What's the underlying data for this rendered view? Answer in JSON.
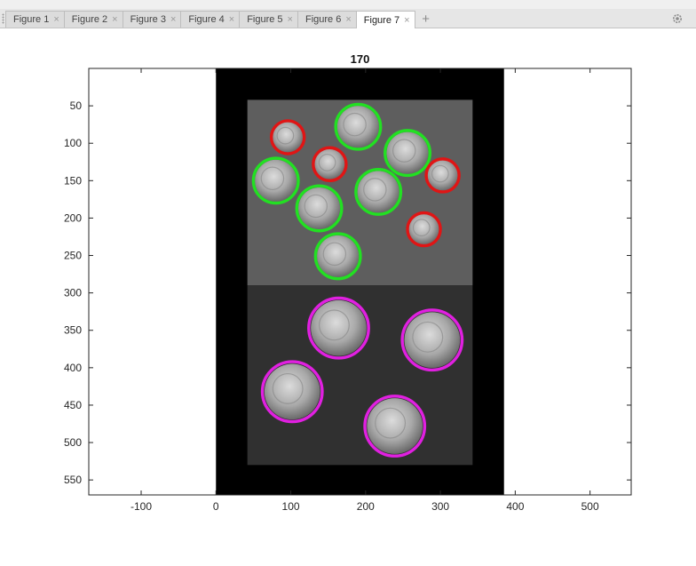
{
  "tabs": [
    {
      "label": "Figure 1",
      "active": false
    },
    {
      "label": "Figure 2",
      "active": false
    },
    {
      "label": "Figure 3",
      "active": false
    },
    {
      "label": "Figure 4",
      "active": false
    },
    {
      "label": "Figure 5",
      "active": false
    },
    {
      "label": "Figure 6",
      "active": false
    },
    {
      "label": "Figure 7",
      "active": true
    }
  ],
  "close_glyph": "×",
  "add_glyph": "+",
  "settings_icon": "gear-icon",
  "chart_data": {
    "type": "image",
    "title": "170",
    "xlim": [
      -170,
      555
    ],
    "ylim": [
      0,
      570
    ],
    "y_reversed": true,
    "image_extent": {
      "x": [
        0,
        385
      ],
      "y": [
        0,
        570
      ]
    },
    "inner_panels": [
      {
        "x": [
          42,
          343
        ],
        "y": [
          42,
          290
        ],
        "shade": "#5e5e5e"
      },
      {
        "x": [
          42,
          343
        ],
        "y": [
          290,
          530
        ],
        "shade": "#303030"
      }
    ],
    "x_ticks": [
      -100,
      0,
      100,
      200,
      300,
      400,
      500
    ],
    "y_ticks": [
      50,
      100,
      150,
      200,
      250,
      300,
      350,
      400,
      450,
      500,
      550
    ],
    "colors": {
      "green": "#22e022",
      "red": "#e01515",
      "magenta": "#e020e0",
      "coin": "#bcbcbc"
    },
    "circles": [
      {
        "x": 96,
        "y": 92,
        "r": 22,
        "color": "red"
      },
      {
        "x": 190,
        "y": 78,
        "r": 30,
        "color": "green"
      },
      {
        "x": 256,
        "y": 113,
        "r": 30,
        "color": "green"
      },
      {
        "x": 303,
        "y": 143,
        "r": 22,
        "color": "red"
      },
      {
        "x": 152,
        "y": 128,
        "r": 22,
        "color": "red"
      },
      {
        "x": 80,
        "y": 150,
        "r": 30,
        "color": "green"
      },
      {
        "x": 217,
        "y": 165,
        "r": 30,
        "color": "green"
      },
      {
        "x": 138,
        "y": 187,
        "r": 30,
        "color": "green"
      },
      {
        "x": 278,
        "y": 215,
        "r": 22,
        "color": "red"
      },
      {
        "x": 163,
        "y": 251,
        "r": 30,
        "color": "green"
      },
      {
        "x": 164,
        "y": 347,
        "r": 40,
        "color": "magenta"
      },
      {
        "x": 289,
        "y": 363,
        "r": 40,
        "color": "magenta"
      },
      {
        "x": 102,
        "y": 432,
        "r": 40,
        "color": "magenta"
      },
      {
        "x": 239,
        "y": 478,
        "r": 40,
        "color": "magenta"
      }
    ]
  }
}
